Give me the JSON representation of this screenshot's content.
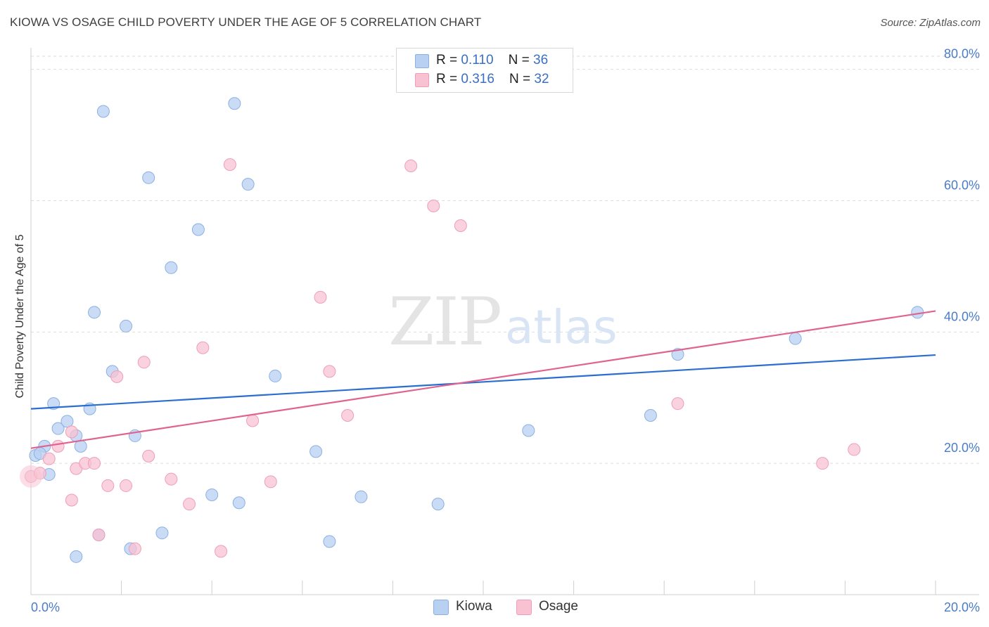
{
  "header": {
    "title": "KIOWA VS OSAGE CHILD POVERTY UNDER THE AGE OF 5 CORRELATION CHART",
    "source": "Source: ZipAtlas.com"
  },
  "watermark": {
    "zip": "ZIP",
    "atlas": "atlas"
  },
  "legend_top": {
    "rows": [
      {
        "r_label": "R = ",
        "r_value": "0.110",
        "n_label": "N = ",
        "n_value": "36"
      },
      {
        "r_label": "R = ",
        "r_value": "0.316",
        "n_label": "N = ",
        "n_value": "32"
      }
    ]
  },
  "legend_bottom": {
    "items": [
      "Kiowa",
      "Osage"
    ]
  },
  "colors": {
    "kiowa_fill": "#b8d0f2",
    "kiowa_stroke": "#8ab0e3",
    "kiowa_line": "#2a6ed0",
    "osage_fill": "#f8c2d3",
    "osage_stroke": "#ee9fb8",
    "osage_line": "#e0638f",
    "tick_text": "#4a7cc7",
    "grid": "#dddddd"
  },
  "chart_data": {
    "type": "scatter",
    "title": "KIOWA VS OSAGE CHILD POVERTY UNDER THE AGE OF 5 CORRELATION CHART",
    "xlabel": "",
    "ylabel": "Child Poverty Under the Age of 5",
    "xlim": [
      0,
      20
    ],
    "ylim": [
      0,
      82
    ],
    "x_tick_labels": [
      "0.0%",
      "20.0%"
    ],
    "y_ticks": [
      20,
      40,
      60,
      80
    ],
    "y_tick_labels": [
      "20.0%",
      "40.0%",
      "60.0%",
      "80.0%"
    ],
    "grid": true,
    "legend_position": "top-center",
    "series": [
      {
        "name": "Kiowa",
        "R": 0.11,
        "N": 36,
        "trend": {
          "x": [
            0,
            20
          ],
          "y": [
            28.3,
            36.5
          ]
        },
        "points": [
          [
            0.1,
            21.2
          ],
          [
            0.3,
            22.6
          ],
          [
            0.5,
            29.1
          ],
          [
            0.6,
            25.3
          ],
          [
            0.8,
            26.4
          ],
          [
            1.1,
            22.6
          ],
          [
            1.0,
            24.2
          ],
          [
            1.3,
            28.3
          ],
          [
            1.4,
            43.0
          ],
          [
            1.6,
            73.6
          ],
          [
            1.8,
            34.0
          ],
          [
            2.1,
            40.9
          ],
          [
            2.3,
            24.2
          ],
          [
            2.6,
            63.5
          ],
          [
            3.1,
            49.8
          ],
          [
            3.7,
            55.6
          ],
          [
            4.5,
            74.8
          ],
          [
            4.8,
            62.5
          ],
          [
            5.4,
            33.3
          ],
          [
            0.4,
            18.3
          ],
          [
            1.0,
            5.8
          ],
          [
            1.5,
            9.1
          ],
          [
            2.2,
            7.0
          ],
          [
            2.9,
            9.4
          ],
          [
            4.0,
            15.2
          ],
          [
            4.6,
            14.0
          ],
          [
            6.3,
            21.8
          ],
          [
            7.3,
            14.9
          ],
          [
            6.6,
            8.1
          ],
          [
            9.0,
            13.8
          ],
          [
            11.0,
            25.0
          ],
          [
            13.7,
            27.3
          ],
          [
            14.3,
            36.6
          ],
          [
            16.9,
            39.0
          ],
          [
            19.6,
            43.0
          ],
          [
            0.2,
            21.5
          ]
        ]
      },
      {
        "name": "Osage",
        "R": 0.316,
        "N": 32,
        "trend": {
          "x": [
            0,
            20
          ],
          "y": [
            22.3,
            43.2
          ]
        },
        "points": [
          [
            0.0,
            18.0
          ],
          [
            0.2,
            18.5
          ],
          [
            0.4,
            20.7
          ],
          [
            0.6,
            22.6
          ],
          [
            0.9,
            24.8
          ],
          [
            1.0,
            19.2
          ],
          [
            1.2,
            20.0
          ],
          [
            1.4,
            20.0
          ],
          [
            1.5,
            9.1
          ],
          [
            1.7,
            16.6
          ],
          [
            1.9,
            33.2
          ],
          [
            2.1,
            16.6
          ],
          [
            2.3,
            7.0
          ],
          [
            2.5,
            35.4
          ],
          [
            2.6,
            21.1
          ],
          [
            3.1,
            17.6
          ],
          [
            3.5,
            13.8
          ],
          [
            3.8,
            37.6
          ],
          [
            4.2,
            6.6
          ],
          [
            4.4,
            65.5
          ],
          [
            4.9,
            26.5
          ],
          [
            5.3,
            17.2
          ],
          [
            6.4,
            45.3
          ],
          [
            6.6,
            34.0
          ],
          [
            7.0,
            27.3
          ],
          [
            8.4,
            65.3
          ],
          [
            8.9,
            59.2
          ],
          [
            9.5,
            56.2
          ],
          [
            0.9,
            14.4
          ],
          [
            14.3,
            29.1
          ],
          [
            17.5,
            20.0
          ],
          [
            18.2,
            22.1
          ]
        ]
      }
    ]
  }
}
